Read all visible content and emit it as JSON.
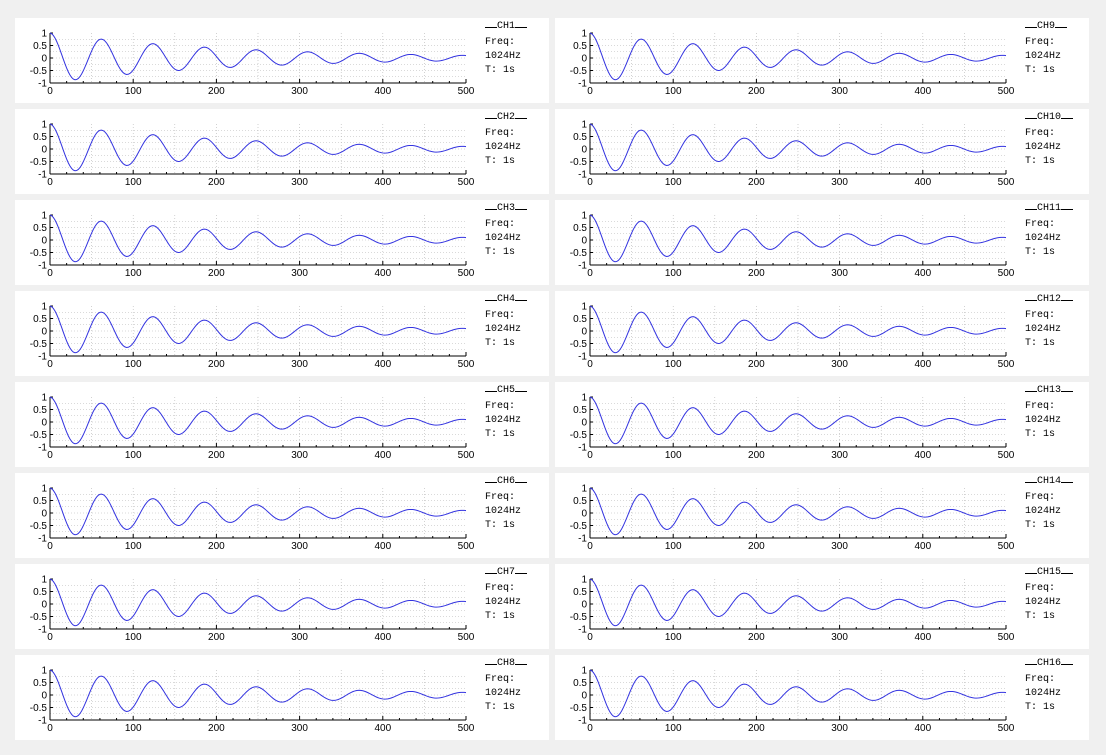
{
  "colors": {
    "background": "#f0f0f0",
    "panel": "#ffffff",
    "trace": "#3333e0",
    "grid": "#b4b4b4",
    "axis": "#000000"
  },
  "legend_labels": {
    "freq": "Freq:",
    "freq_value": "1024Hz",
    "duration": "T: 1s"
  },
  "chart_data": {
    "type": "line",
    "xlim": [
      0,
      500
    ],
    "ylim": [
      -1,
      1
    ],
    "xticks": [
      "0",
      "100",
      "200",
      "300",
      "400",
      "500"
    ],
    "yticks": [
      "1",
      "0.5",
      "0",
      "-0.5",
      "-1"
    ],
    "grid": true,
    "samples": 250,
    "waveform": {
      "amplitude": 1.0,
      "period": 62,
      "decay": 0.0045,
      "phase": "cosine"
    },
    "channels": [
      {
        "name": "CH1"
      },
      {
        "name": "CH2"
      },
      {
        "name": "CH3"
      },
      {
        "name": "CH4"
      },
      {
        "name": "CH5"
      },
      {
        "name": "CH6"
      },
      {
        "name": "CH7"
      },
      {
        "name": "CH8"
      },
      {
        "name": "CH9"
      },
      {
        "name": "CH10"
      },
      {
        "name": "CH11"
      },
      {
        "name": "CH12"
      },
      {
        "name": "CH13"
      },
      {
        "name": "CH14"
      },
      {
        "name": "CH15"
      },
      {
        "name": "CH16"
      }
    ]
  }
}
